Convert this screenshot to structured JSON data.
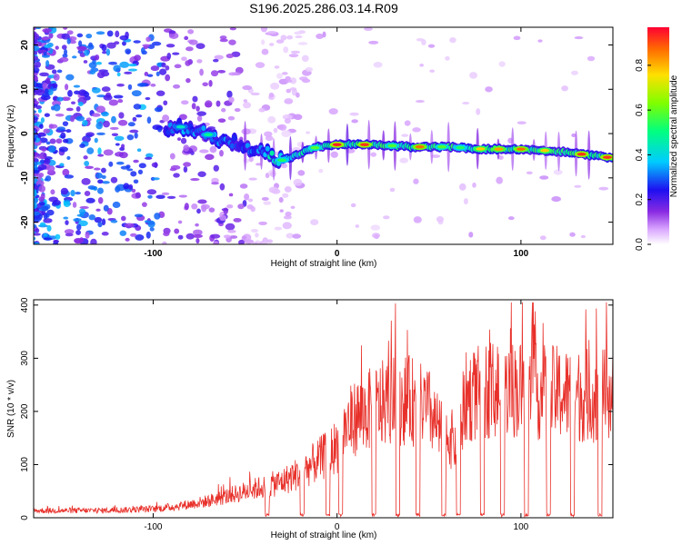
{
  "title": "S196.2025.286.03.14.R09",
  "chart_data": [
    {
      "type": "heatmap",
      "xlabel": "Height of straight line (km)",
      "ylabel": "Frequency (Hz)",
      "xlim": [
        -165,
        150
      ],
      "ylim": [
        -25,
        24
      ],
      "xticks": [
        -100,
        0,
        100
      ],
      "yticks": [
        -20,
        -10,
        0,
        10,
        20
      ],
      "colorbar": {
        "label": "Normalized spectral amplitude",
        "range": [
          0.0,
          0.97
        ],
        "ticks": [
          0.0,
          0.2,
          0.4,
          0.6,
          0.8
        ]
      },
      "ridge": {
        "x": [
          -93,
          -85,
          -75,
          -65,
          -55,
          -45,
          -38,
          -34,
          -30,
          -25,
          -20,
          -15,
          -10,
          0,
          10,
          20,
          40,
          60,
          80,
          100,
          120,
          140,
          150
        ],
        "freq": [
          0.5,
          1.5,
          0.5,
          -1.0,
          -2.0,
          -3.5,
          -4.5,
          -6.0,
          -6.0,
          -5.5,
          -4.5,
          -3.5,
          -3.0,
          -2.5,
          -2.5,
          -2.5,
          -3.0,
          -3.0,
          -3.5,
          -3.5,
          -4.0,
          -5.0,
          -5.5
        ]
      }
    },
    {
      "type": "line",
      "xlabel": "Height of straight line (km)",
      "ylabel": "SNR (10 * v/v)",
      "xlim": [
        -165,
        150
      ],
      "ylim": [
        0,
        410
      ],
      "xticks": [
        -100,
        0,
        100
      ],
      "yticks": [
        0,
        100,
        200,
        300,
        400
      ],
      "series": [
        {
          "name": "SNR",
          "color": "#e8302a",
          "envelope_x": [
            -165,
            -130,
            -100,
            -85,
            -70,
            -55,
            -45,
            -40,
            -30,
            -20,
            -10,
            0,
            5,
            10,
            20,
            30,
            40,
            50,
            55,
            60,
            62,
            65,
            70,
            80,
            90,
            100,
            110,
            120,
            130,
            140,
            150
          ],
          "envelope_y": [
            15,
            15,
            18,
            25,
            35,
            50,
            60,
            65,
            75,
            95,
            120,
            150,
            190,
            210,
            230,
            245,
            245,
            225,
            185,
            175,
            165,
            155,
            250,
            265,
            270,
            268,
            262,
            260,
            255,
            255,
            260
          ],
          "dropouts_x": [
            -38,
            -19,
            -5,
            2,
            20,
            33,
            44,
            58,
            66,
            79,
            90,
            103,
            115,
            128,
            143
          ]
        }
      ]
    }
  ],
  "colors": {
    "line": "#e8302a"
  }
}
